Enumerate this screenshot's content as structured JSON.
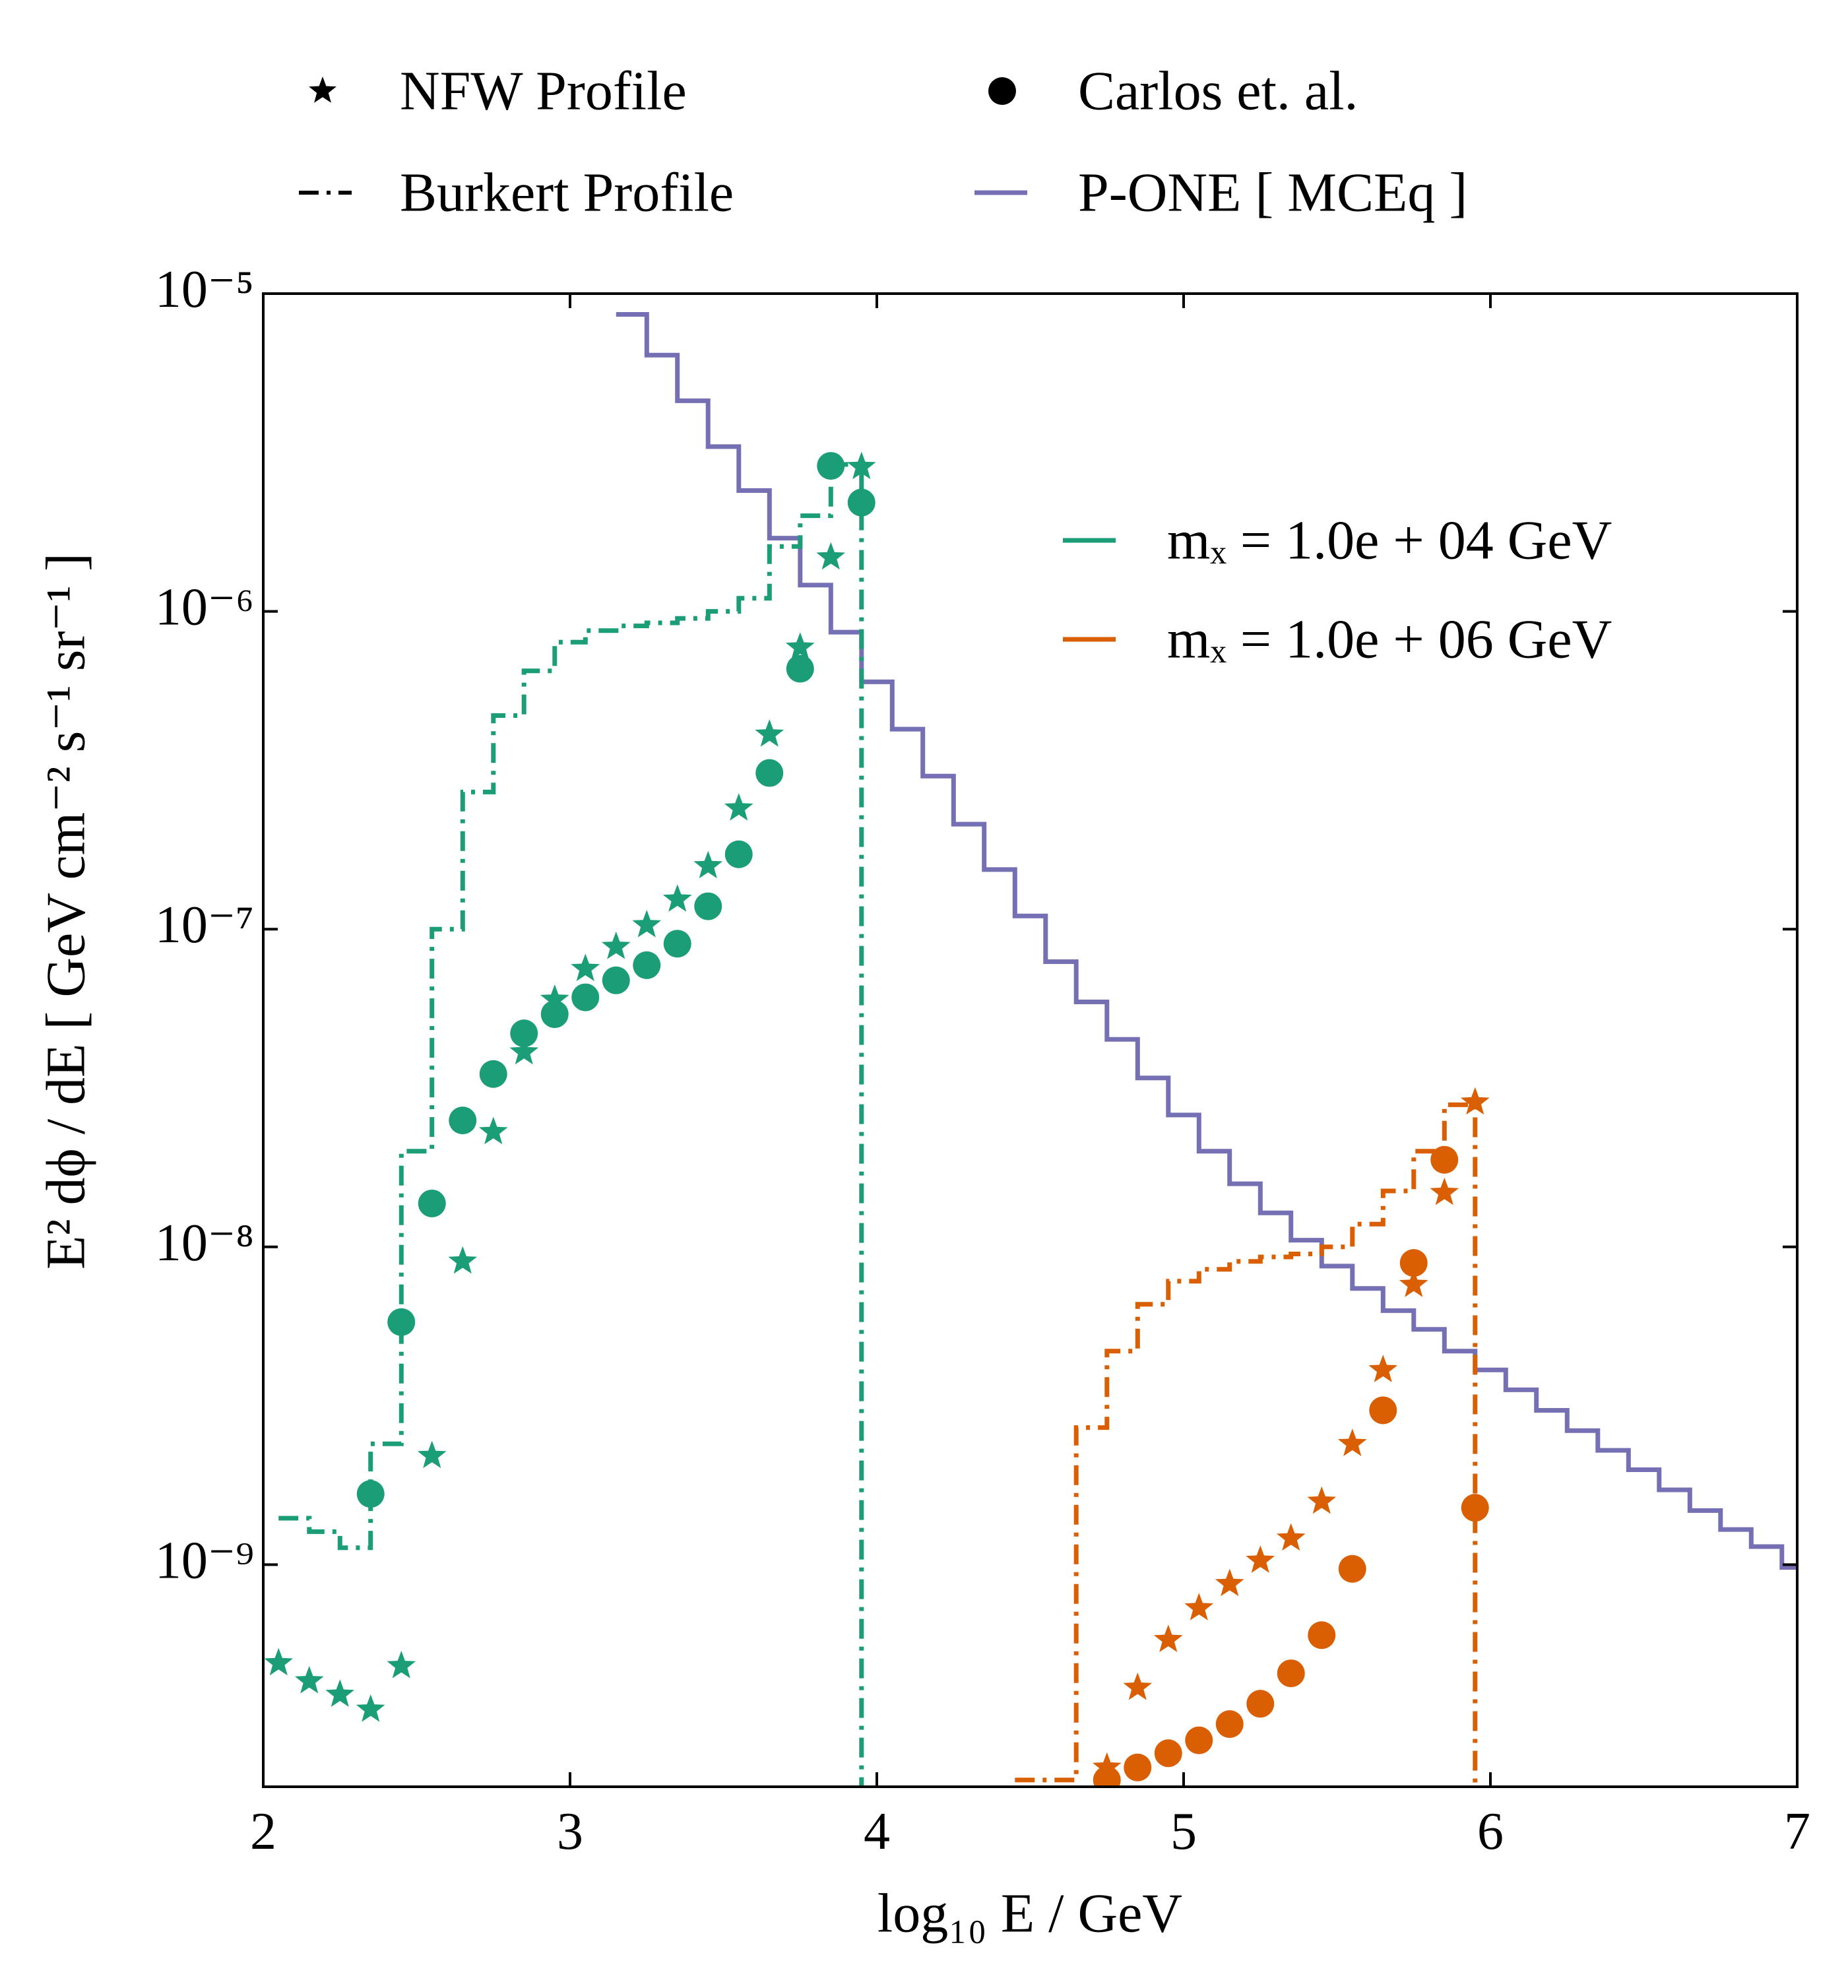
{
  "chart_data": {
    "type": "line",
    "yscale": "log",
    "x_label": "log₁₀ E / GeV",
    "y_label": "E² dϕ / dE [ GeV cm⁻² s⁻¹ sr⁻¹ ]",
    "xlim": [
      2,
      7
    ],
    "xticks": [
      2,
      3,
      4,
      5,
      6,
      7
    ],
    "ylim": [
      2e-10,
      1e-05
    ],
    "yticks": [
      {
        "value": 1e-09,
        "label": "10⁻⁹"
      },
      {
        "value": 1e-08,
        "label": "10⁻⁸"
      },
      {
        "value": 1e-07,
        "label": "10⁻⁷"
      },
      {
        "value": 1e-06,
        "label": "10⁻⁶"
      },
      {
        "value": 1e-05,
        "label": "10⁻⁵"
      }
    ],
    "legend": [
      {
        "label": "NFW Profile",
        "marker": "star"
      },
      {
        "label": "Carlos et. al.",
        "marker": "circle"
      },
      {
        "label": "Burkert Profile",
        "marker": "dashdot"
      },
      {
        "label": "P-ONE [ MCEq ]",
        "marker": "line",
        "color": "#7570b3"
      }
    ],
    "mass_legend": "upper right",
    "pone": {
      "color": "#7570b3",
      "x": [
        3.2,
        3.3,
        3.4,
        3.5,
        3.6,
        3.7,
        3.8,
        3.9,
        4.0,
        4.1,
        4.2,
        4.3,
        4.4,
        4.5,
        4.6,
        4.7,
        4.8,
        4.9,
        5.0,
        5.1,
        5.2,
        5.3,
        5.4,
        5.5,
        5.6,
        5.7,
        5.8,
        5.9,
        6.0,
        6.1,
        6.2,
        6.3,
        6.4,
        6.5,
        6.6,
        6.7,
        6.8,
        6.9,
        7.0
      ],
      "values": [
        8.6e-06,
        6.4e-06,
        4.6e-06,
        3.3e-06,
        2.4e-06,
        1.7e-06,
        1.21e-06,
        8.6e-07,
        6e-07,
        4.26e-07,
        3.03e-07,
        2.14e-07,
        1.54e-07,
        1.1e-07,
        7.9e-08,
        5.9e-08,
        4.5e-08,
        3.4e-08,
        2.6e-08,
        2e-08,
        1.58e-08,
        1.28e-08,
        1.05e-08,
        8.7e-09,
        7.4e-09,
        6.3e-09,
        5.5e-09,
        4.7e-09,
        4.1e-09,
        3.55e-09,
        3.06e-09,
        2.64e-09,
        2.29e-09,
        1.99e-09,
        1.72e-09,
        1.48e-09,
        1.29e-09,
        1.14e-09,
        9.8e-10
      ]
    },
    "masses": [
      {
        "label": "mₓ = 1.0e + 04 GeV",
        "color": "#1b9e77",
        "burkert": {
          "x": [
            2.1,
            2.2,
            2.3,
            2.4,
            2.5,
            2.6,
            2.7,
            2.8,
            2.9,
            3.0,
            3.1,
            3.2,
            3.3,
            3.4,
            3.5,
            3.6,
            3.7,
            3.8,
            3.9
          ],
          "values": [
            1.4e-09,
            1.27e-09,
            1.13e-09,
            2.4e-09,
            2e-08,
            1e-07,
            2.7e-07,
            4.7e-07,
            6.5e-07,
            8e-07,
            8.7e-07,
            9e-07,
            9.2e-07,
            9.5e-07,
            1e-06,
            1.1e-06,
            1.6e-06,
            2e-06,
            2.9e-06
          ]
        },
        "nfw": {
          "x": [
            2.05,
            2.15,
            2.25,
            2.35,
            2.45,
            2.55,
            2.65,
            2.75,
            2.85,
            2.95,
            3.05,
            3.15,
            3.25,
            3.35,
            3.45,
            3.55,
            3.65,
            3.75,
            3.85,
            3.95
          ],
          "values": [
            4.9e-10,
            4.3e-10,
            3.9e-10,
            3.5e-10,
            4.8e-10,
            2.2e-09,
            9e-09,
            2.3e-08,
            4.1e-08,
            6e-08,
            7.5e-08,
            8.8e-08,
            1.03e-07,
            1.24e-07,
            1.58e-07,
            2.4e-07,
            4.1e-07,
            7.7e-07,
            1.48e-06,
            2.85e-06
          ]
        },
        "carlos": {
          "x": [
            2.35,
            2.45,
            2.55,
            2.65,
            2.75,
            2.85,
            2.95,
            3.05,
            3.15,
            3.25,
            3.35,
            3.45,
            3.55,
            3.65,
            3.75,
            3.85,
            3.95
          ],
          "values": [
            1.67e-09,
            5.8e-09,
            1.37e-08,
            2.5e-08,
            3.5e-08,
            4.7e-08,
            5.4e-08,
            6.1e-08,
            6.9e-08,
            7.7e-08,
            9e-08,
            1.18e-07,
            1.72e-07,
            3.1e-07,
            6.6e-07,
            2.87e-06,
            2.2e-06
          ]
        }
      },
      {
        "label": "mₓ = 1.0e + 06 GeV",
        "color": "#d95f02",
        "burkert": {
          "x": [
            4.5,
            4.6,
            4.7,
            4.8,
            4.9,
            5.0,
            5.1,
            5.2,
            5.3,
            5.4,
            5.5,
            5.6,
            5.7,
            5.8,
            5.9
          ],
          "values": [
            2.1e-10,
            2.1e-10,
            2.7e-09,
            4.7e-09,
            6.6e-09,
            7.8e-09,
            8.5e-09,
            9e-09,
            9.3e-09,
            9.5e-09,
            1e-08,
            1.18e-08,
            1.5e-08,
            2e-08,
            2.8e-08
          ]
        },
        "nfw": {
          "x": [
            4.75,
            4.85,
            4.95,
            5.05,
            5.15,
            5.25,
            5.35,
            5.45,
            5.55,
            5.65,
            5.75,
            5.85,
            5.95
          ],
          "values": [
            2.3e-10,
            4.1e-10,
            5.8e-10,
            7.3e-10,
            8.7e-10,
            1.03e-09,
            1.21e-09,
            1.58e-09,
            2.4e-09,
            4.1e-09,
            7.6e-09,
            1.48e-08,
            2.85e-08
          ]
        },
        "carlos": {
          "x": [
            4.75,
            4.85,
            4.95,
            5.05,
            5.15,
            5.25,
            5.35,
            5.45,
            5.55,
            5.65,
            5.75,
            5.85,
            5.95
          ],
          "values": [
            2.1e-10,
            2.3e-10,
            2.55e-10,
            2.8e-10,
            3.15e-10,
            3.65e-10,
            4.55e-10,
            6e-10,
            9.7e-10,
            3.06e-09,
            8.9e-09,
            1.88e-08,
            1.51e-09
          ]
        }
      }
    ]
  }
}
